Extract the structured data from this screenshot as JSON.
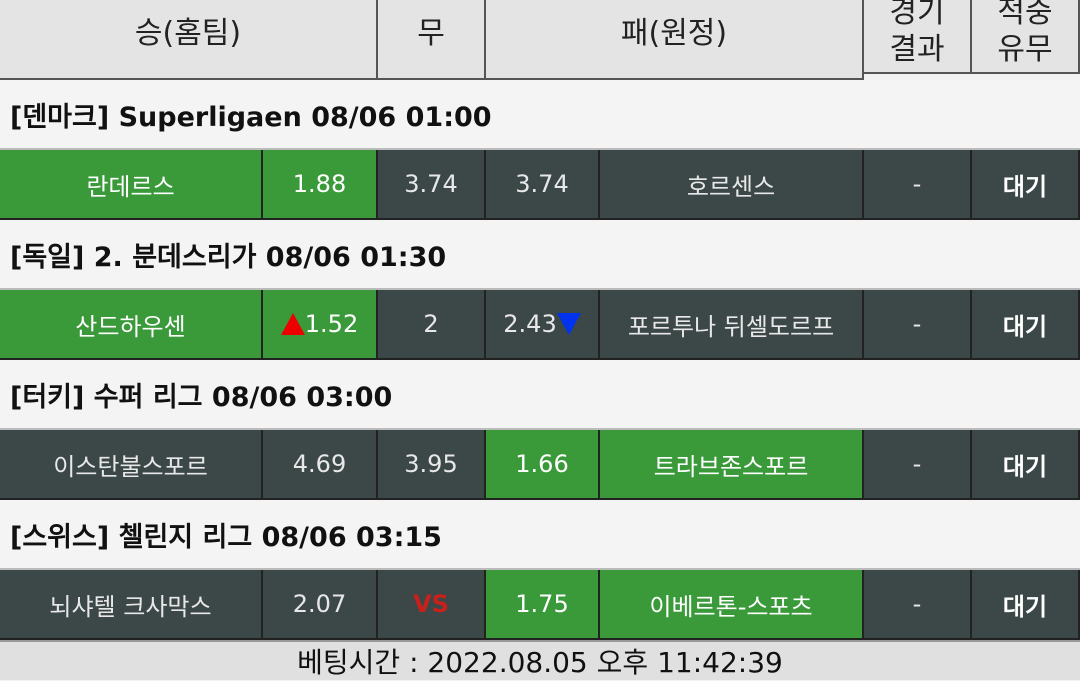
{
  "header": {
    "columns": [
      "승(홈팀)",
      "무",
      "패(원정)",
      [
        "경기",
        "결과"
      ],
      [
        "적중",
        "유무"
      ]
    ]
  },
  "matches": [
    {
      "league": "[덴마크] Superligaen 08/06 01:00",
      "home": "란데르스",
      "home_odds": 1.88,
      "draw": 3.74,
      "away_odds": 3.74,
      "away": "호르센스",
      "result": "-",
      "status": "대기",
      "favored": "home"
    },
    {
      "league": "[독일] 2. 분데스리가 08/06 01:30",
      "home": "산드하우센",
      "home_odds": 1.52,
      "home_arrow": "up",
      "draw": 2,
      "away_odds": 2.43,
      "away_arrow": "down",
      "away": "포르투나 뒤셀도르프",
      "result": "-",
      "status": "대기",
      "favored": "home"
    },
    {
      "league": "[터키] 수퍼 리그 08/06 03:00",
      "home": "이스탄불스포르",
      "home_odds": 4.69,
      "draw": 3.95,
      "away_odds": 1.66,
      "away": "트라브존스포르",
      "result": "-",
      "status": "대기",
      "favored": "away"
    },
    {
      "league": "[스위스] 첼린지 리그 08/06 03:15",
      "home": "뇌샤텔 크사막스",
      "home_odds": 2.07,
      "draw": "VS",
      "away_odds": 1.75,
      "away": "이베르톤-스포츠",
      "result": "-",
      "status": "대기",
      "favored": "away"
    }
  ],
  "footer": "베팅시간 : 2022.08.05 오후 11:42:39"
}
